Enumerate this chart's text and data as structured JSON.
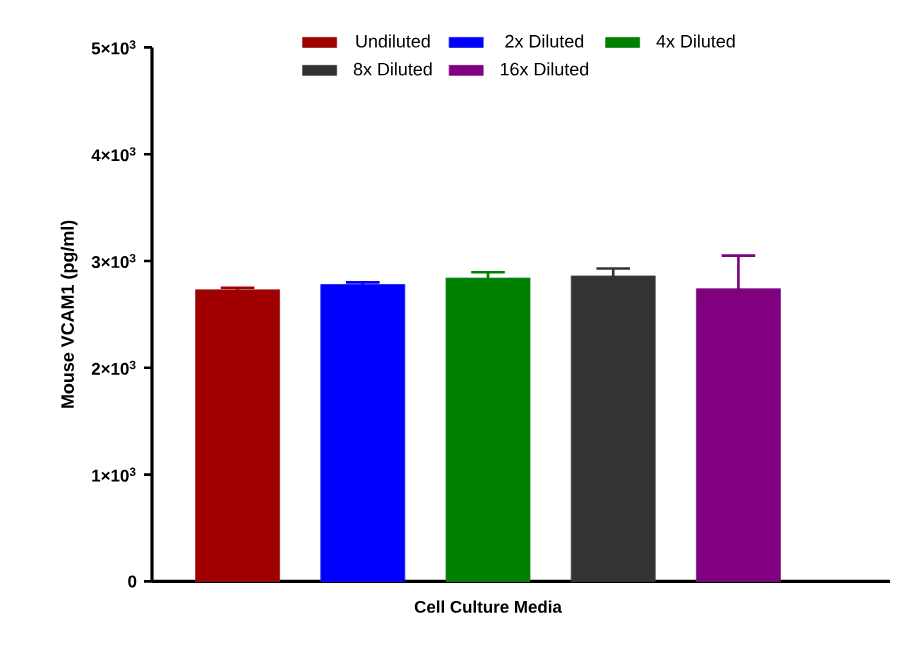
{
  "chart_data": {
    "type": "bar",
    "ylabel": "Mouse VCAM1 (pg/ml)",
    "categories": [
      "Cell Culture Media"
    ],
    "ylim": [
      0,
      5000
    ],
    "yticks": [
      0,
      {
        "value": 1000,
        "label": "1×10$^{3}$"
      },
      {
        "value": 2000,
        "label": "2×10$^{3}$"
      },
      {
        "value": 3000,
        "label": "3×10$^{3}$"
      },
      {
        "value": 4000,
        "label": "4×10$^{3}$"
      },
      {
        "value": 5000,
        "label": "5×10$^{3}$"
      }
    ],
    "legend": "top",
    "series": [
      {
        "name": "Undiluted",
        "color": "#a00000",
        "values": [
          2730
        ],
        "errors": [
          20
        ]
      },
      {
        "name": "2x Diluted",
        "color": "#0000ff",
        "values": [
          2780
        ],
        "errors": [
          20
        ]
      },
      {
        "name": "4x Diluted",
        "color": "#008000",
        "values": [
          2840
        ],
        "errors": [
          55
        ]
      },
      {
        "name": "8x Diluted",
        "color": "#333333",
        "values": [
          2860
        ],
        "errors": [
          70
        ]
      },
      {
        "name": "16x Diluted",
        "color": "#800080",
        "values": [
          2740
        ],
        "errors": [
          310
        ]
      }
    ]
  }
}
